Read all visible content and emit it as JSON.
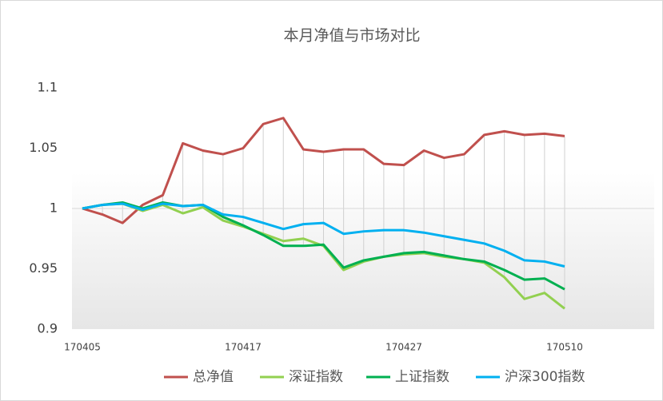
{
  "chart_data": {
    "type": "line",
    "title": "本月净值与市场对比",
    "categories": [
      "170405",
      null,
      null,
      null,
      null,
      null,
      null,
      null,
      "170417",
      null,
      null,
      null,
      null,
      null,
      null,
      null,
      "170427",
      null,
      null,
      null,
      null,
      null,
      null,
      null,
      "170510"
    ],
    "series": [
      {
        "name": "总净值",
        "color": "#c0504d",
        "values": [
          1.0,
          0.995,
          0.988,
          1.003,
          1.011,
          1.054,
          1.048,
          1.045,
          1.05,
          1.07,
          1.075,
          1.049,
          1.047,
          1.049,
          1.049,
          1.037,
          1.036,
          1.048,
          1.042,
          1.045,
          1.061,
          1.064,
          1.061,
          1.062,
          1.06
        ]
      },
      {
        "name": "深证指数",
        "color": "#92d050",
        "values": [
          1.0,
          1.003,
          1.004,
          0.998,
          1.003,
          0.996,
          1.001,
          0.99,
          0.985,
          0.979,
          0.973,
          0.975,
          0.969,
          0.949,
          0.956,
          0.96,
          0.962,
          0.963,
          0.96,
          0.958,
          0.955,
          0.943,
          0.925,
          0.93,
          0.917
        ]
      },
      {
        "name": "上证指数",
        "color": "#00b050",
        "values": [
          1.0,
          1.003,
          1.005,
          1.0,
          1.005,
          1.002,
          1.003,
          0.993,
          0.986,
          0.978,
          0.969,
          0.969,
          0.97,
          0.951,
          0.957,
          0.96,
          0.963,
          0.964,
          0.961,
          0.958,
          0.956,
          0.949,
          0.941,
          0.942,
          0.933
        ]
      },
      {
        "name": "沪深300指数",
        "color": "#00b0f0",
        "values": [
          1.0,
          1.003,
          1.004,
          0.999,
          1.004,
          1.002,
          1.003,
          0.995,
          0.993,
          0.988,
          0.983,
          0.987,
          0.988,
          0.979,
          0.981,
          0.982,
          0.982,
          0.98,
          0.977,
          0.974,
          0.971,
          0.965,
          0.957,
          0.956,
          0.952
        ]
      }
    ],
    "ylim": [
      0.9,
      1.1
    ],
    "yticks": [
      0.9,
      0.95,
      1,
      1.05,
      1.1
    ],
    "legend": "bottom"
  }
}
